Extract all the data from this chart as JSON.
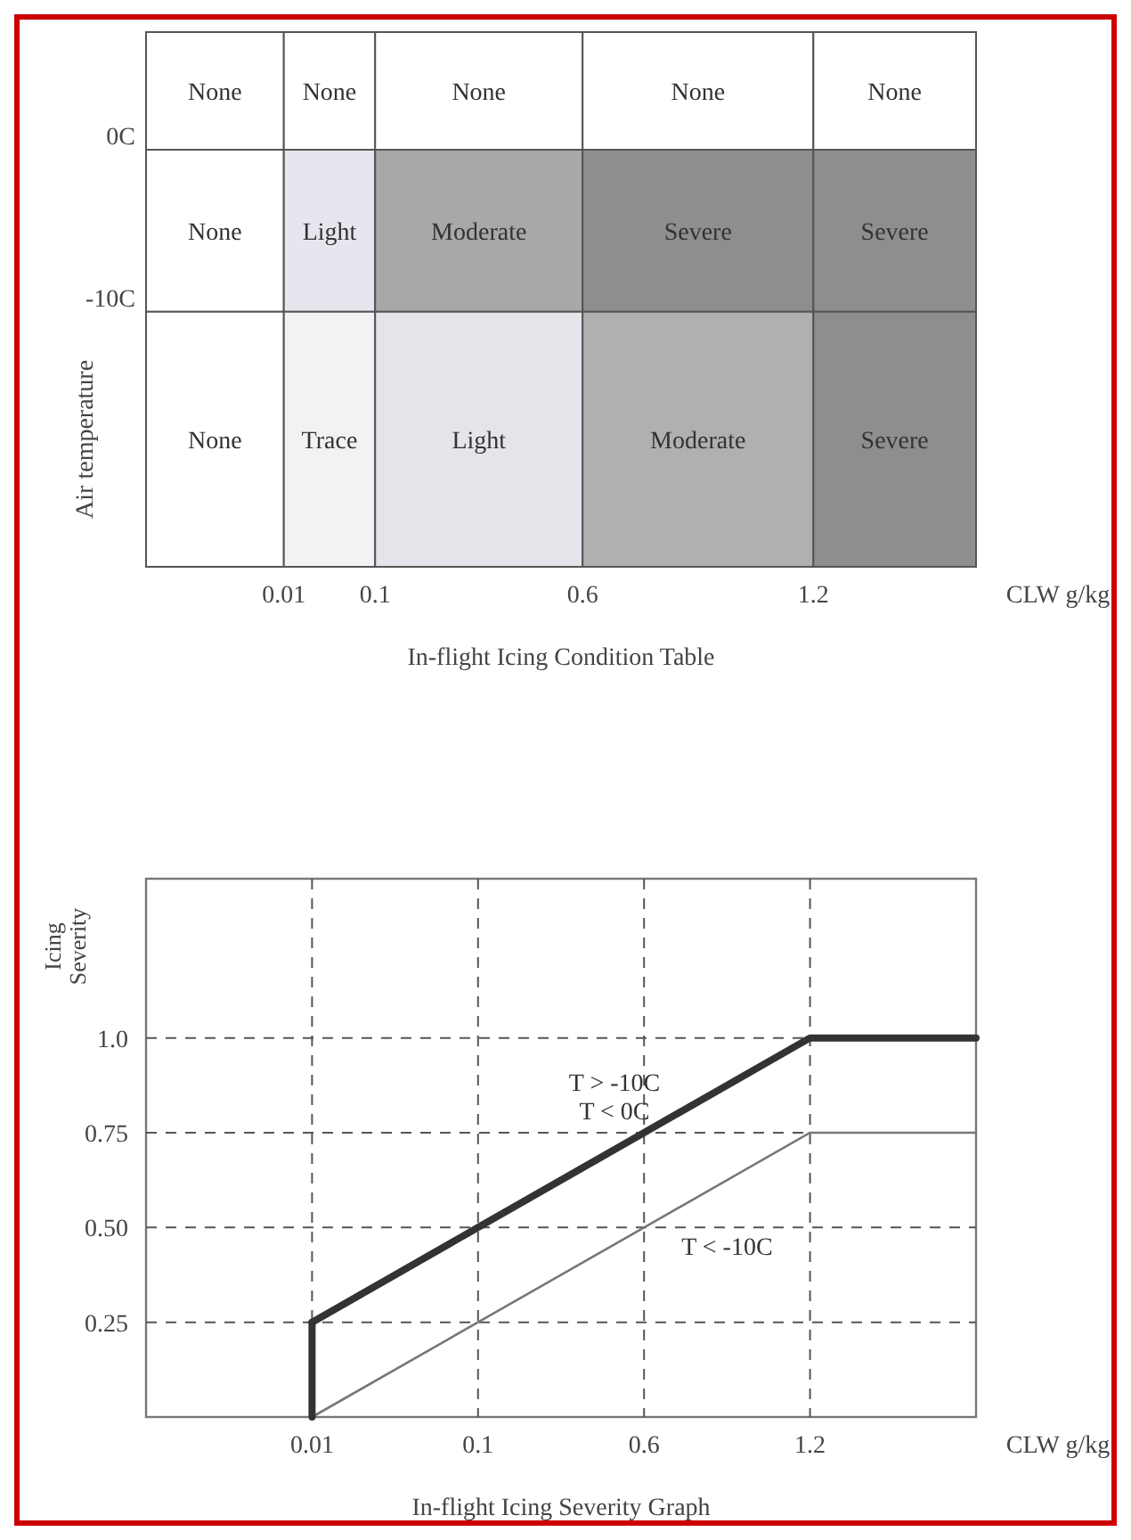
{
  "chart_data": [
    {
      "type": "other",
      "title": "In-flight Icing Condition Table",
      "xlabel": "CLW g/kg",
      "ylabel": "Air temperature",
      "colors": [
        [
          "#ffffff",
          "#ffffff",
          "#ffffff",
          "#ffffff",
          "#ffffff"
        ],
        [
          "#ffffff",
          "#e6e6ee",
          "#a8a8a8",
          "#8e8e8e",
          "#8e8e8e"
        ],
        [
          "#ffffff",
          "#f2f2f4",
          "#e4e4ea",
          "#b0b0b0",
          "#8e8e8e"
        ]
      ],
      "cell_labels": [
        [
          "None",
          "None",
          "None",
          "None",
          "None"
        ],
        [
          "None",
          "Light",
          "Moderate",
          "Severe",
          "Severe"
        ],
        [
          "None",
          "Trace",
          "Light",
          "Moderate",
          "Severe"
        ]
      ],
      "annotations": [
        "0.01",
        "0.1",
        "0.6",
        "1.2",
        "0C",
        "-10C"
      ]
    },
    {
      "type": "line",
      "title": "In-flight Icing Severity Graph",
      "xlabel": "CLW g/kg",
      "ylabel": "Icing Severity",
      "categories": [
        "0.01",
        "0.1",
        "0.6",
        "1.2",
        null
      ],
      "ylim": [
        0,
        1.42
      ],
      "yticks": [
        0.25,
        {
          "value": 0.5,
          "label": "0.50"
        },
        0.75,
        {
          "value": 1,
          "label": "1.0"
        }
      ],
      "grid": true,
      "series": [
        {
          "name": "T > -10C T < 0C",
          "color": "#333333",
          "values": [
            0.25,
            0.5,
            0.75,
            1.0,
            1.0
          ]
        },
        {
          "name": "T < -10C",
          "color": "#777777",
          "values": [
            0,
            0.25,
            0.5,
            0.75,
            0.75
          ]
        },
        {
          "color": "#333333",
          "x": [
            "0.01",
            "0.01"
          ],
          "values": [
            0,
            0.25
          ]
        }
      ]
    }
  ]
}
